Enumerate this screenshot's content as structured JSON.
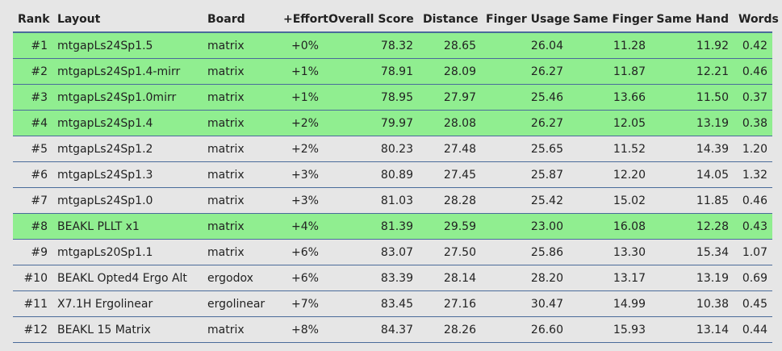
{
  "table": {
    "headers": {
      "rank": "Rank",
      "layout": "Layout",
      "board": "Board",
      "effort": "+Effort",
      "overall": "Overall Score",
      "distance": "Distance",
      "finger_usage": "Finger Usage",
      "same_finger": "Same Finger",
      "same_hand": "Same Hand",
      "words": "Words"
    },
    "highlight_color": "#90ee90",
    "border_color": "#4a6b9a",
    "rows": [
      {
        "rank": "#1",
        "layout": "mtgapLs24Sp1.5",
        "board": "matrix",
        "effort": "+0%",
        "overall": "78.32",
        "distance": "28.65",
        "finger_usage": "26.04",
        "same_finger": "11.28",
        "same_hand": "11.92",
        "words": "0.42",
        "highlighted": true
      },
      {
        "rank": "#2",
        "layout": "mtgapLs24Sp1.4-mirr",
        "board": "matrix",
        "effort": "+1%",
        "overall": "78.91",
        "distance": "28.09",
        "finger_usage": "26.27",
        "same_finger": "11.87",
        "same_hand": "12.21",
        "words": "0.46",
        "highlighted": true
      },
      {
        "rank": "#3",
        "layout": "mtgapLs24Sp1.0mirr",
        "board": "matrix",
        "effort": "+1%",
        "overall": "78.95",
        "distance": "27.97",
        "finger_usage": "25.46",
        "same_finger": "13.66",
        "same_hand": "11.50",
        "words": "0.37",
        "highlighted": true
      },
      {
        "rank": "#4",
        "layout": "mtgapLs24Sp1.4",
        "board": "matrix",
        "effort": "+2%",
        "overall": "79.97",
        "distance": "28.08",
        "finger_usage": "26.27",
        "same_finger": "12.05",
        "same_hand": "13.19",
        "words": "0.38",
        "highlighted": true
      },
      {
        "rank": "#5",
        "layout": "mtgapLs24Sp1.2",
        "board": "matrix",
        "effort": "+2%",
        "overall": "80.23",
        "distance": "27.48",
        "finger_usage": "25.65",
        "same_finger": "11.52",
        "same_hand": "14.39",
        "words": "1.20",
        "highlighted": false
      },
      {
        "rank": "#6",
        "layout": "mtgapLs24Sp1.3",
        "board": "matrix",
        "effort": "+3%",
        "overall": "80.89",
        "distance": "27.45",
        "finger_usage": "25.87",
        "same_finger": "12.20",
        "same_hand": "14.05",
        "words": "1.32",
        "highlighted": false
      },
      {
        "rank": "#7",
        "layout": "mtgapLs24Sp1.0",
        "board": "matrix",
        "effort": "+3%",
        "overall": "81.03",
        "distance": "28.28",
        "finger_usage": "25.42",
        "same_finger": "15.02",
        "same_hand": "11.85",
        "words": "0.46",
        "highlighted": false
      },
      {
        "rank": "#8",
        "layout": "BEAKL PLLT x1",
        "board": "matrix",
        "effort": "+4%",
        "overall": "81.39",
        "distance": "29.59",
        "finger_usage": "23.00",
        "same_finger": "16.08",
        "same_hand": "12.28",
        "words": "0.43",
        "highlighted": true
      },
      {
        "rank": "#9",
        "layout": "mtgapLs20Sp1.1",
        "board": "matrix",
        "effort": "+6%",
        "overall": "83.07",
        "distance": "27.50",
        "finger_usage": "25.86",
        "same_finger": "13.30",
        "same_hand": "15.34",
        "words": "1.07",
        "highlighted": false
      },
      {
        "rank": "#10",
        "layout": "BEAKL Opted4 Ergo Alt",
        "board": "ergodox",
        "effort": "+6%",
        "overall": "83.39",
        "distance": "28.14",
        "finger_usage": "28.20",
        "same_finger": "13.17",
        "same_hand": "13.19",
        "words": "0.69",
        "highlighted": false
      },
      {
        "rank": "#11",
        "layout": "X7.1H Ergolinear",
        "board": "ergolinear",
        "effort": "+7%",
        "overall": "83.45",
        "distance": "27.16",
        "finger_usage": "30.47",
        "same_finger": "14.99",
        "same_hand": "10.38",
        "words": "0.45",
        "highlighted": false
      },
      {
        "rank": "#12",
        "layout": "BEAKL 15 Matrix",
        "board": "matrix",
        "effort": "+8%",
        "overall": "84.37",
        "distance": "28.26",
        "finger_usage": "26.60",
        "same_finger": "15.93",
        "same_hand": "13.14",
        "words": "0.44",
        "highlighted": false
      }
    ]
  }
}
